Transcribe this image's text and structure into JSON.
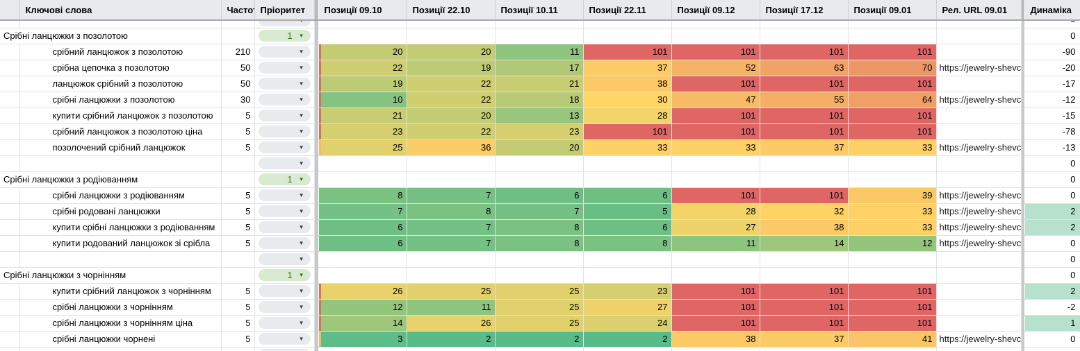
{
  "sheet": {
    "header": {
      "gutter": "",
      "keywords": "Ключові слова",
      "frequency": "Частот",
      "priority": "Пріоритет",
      "positions": [
        "Позиції 09.10",
        "Позиції 22.10",
        "Позиції 10.11",
        "Позиції 22.11",
        "Позиції 09.12",
        "Позиції 17.12",
        "Позиції 09.01"
      ],
      "url": "Рел. URL 09.01",
      "dynamics": "Динаміка"
    },
    "url_text": "https://jewelry-shevcl",
    "colors": {
      "header_bg": "#E9EAED",
      "divider_bg": "#C7CACC",
      "red_101": "#E06666",
      "dyn_positive_bg": "#B7E1CD",
      "pill_green_bg": "#D9EAD3",
      "pill_green_text": "#38761D",
      "pill_gray_bg": "#E8EAED",
      "strip_red": "#DC6E65",
      "strip_orange": "#F7B861"
    },
    "position_color_scale": {
      "2": "#57BB8A",
      "3": "#5DBC89",
      "5": "#69BE86",
      "6": "#6FBF85",
      "7": "#75C084",
      "8": "#7BC182",
      "10": "#87C380",
      "11": "#8DC47E",
      "12": "#93C57D",
      "13": "#99C67C",
      "14": "#9FC77B",
      "17": "#B1C977",
      "18": "#B7CA75",
      "19": "#BDCB74",
      "20": "#C3CC73",
      "21": "#C9CD72",
      "22": "#CFCE70",
      "23": "#D5CF6F",
      "24": "#DBD06E",
      "25": "#E1D16C",
      "26": "#E7D26B",
      "27": "#EDD36A",
      "28": "#F3D468",
      "30": "#FFD666",
      "32": "#FED366",
      "33": "#FED166",
      "36": "#FCCC66",
      "37": "#FCCB66",
      "38": "#FBC966",
      "39": "#FBC866",
      "41": "#FAC566",
      "47": "#F8BB66",
      "52": "#F5B366",
      "55": "#F4AF66",
      "63": "#F1A266",
      "64": "#F0A066",
      "70": "#EE9766",
      "101": "#E06666"
    },
    "rows": [
      {
        "type": "partial_top",
        "dyn": "0"
      },
      {
        "type": "group",
        "label": "Срібні ланцюжки з позолотою",
        "priority": "1",
        "dyn": "0"
      },
      {
        "type": "kw",
        "label": "срібний ланцюжок з позолотою",
        "freq": "210",
        "strip": "red",
        "positions": [
          20,
          20,
          11,
          101,
          101,
          101,
          101
        ],
        "has_url": false,
        "dyn": "-90",
        "dyn_green": false
      },
      {
        "type": "kw",
        "label": "срібна цепочка з позолотою",
        "freq": "50",
        "strip": "red",
        "positions": [
          22,
          19,
          17,
          37,
          52,
          63,
          70
        ],
        "has_url": true,
        "dyn": "-20",
        "dyn_green": false
      },
      {
        "type": "kw",
        "label": "ланцюжок срібний з позолотою",
        "freq": "50",
        "strip": "red",
        "positions": [
          19,
          22,
          21,
          38,
          101,
          101,
          101
        ],
        "has_url": false,
        "dyn": "-17",
        "dyn_green": false
      },
      {
        "type": "kw",
        "label": "срібні ланцюжки з позолотою",
        "freq": "30",
        "strip": "red",
        "positions": [
          10,
          22,
          18,
          30,
          47,
          55,
          64
        ],
        "has_url": true,
        "dyn": "-12",
        "dyn_green": false
      },
      {
        "type": "kw",
        "label": "купити срібний ланцюжок з позолотою",
        "freq": "5",
        "strip": "red",
        "positions": [
          21,
          20,
          13,
          28,
          101,
          101,
          101
        ],
        "has_url": false,
        "dyn": "-15",
        "dyn_green": false
      },
      {
        "type": "kw",
        "label": "срібний ланцюжок з позолотою ціна",
        "freq": "5",
        "strip": "red",
        "positions": [
          23,
          22,
          23,
          101,
          101,
          101,
          101
        ],
        "has_url": false,
        "dyn": "-78",
        "dyn_green": false
      },
      {
        "type": "kw",
        "label": "позолочений срібний ланцюжок",
        "freq": "5",
        "strip": "orange",
        "positions": [
          25,
          36,
          20,
          33,
          33,
          37,
          33
        ],
        "has_url": true,
        "dyn": "-13",
        "dyn_green": false
      },
      {
        "type": "empty",
        "dyn": "0"
      },
      {
        "type": "group",
        "label": "Срібні ланцюжки з родіюванням",
        "priority": "1",
        "dyn": "0"
      },
      {
        "type": "kw",
        "label": "срібні ланцюжки з родіюванням",
        "freq": "5",
        "strip": null,
        "positions": [
          8,
          7,
          6,
          6,
          101,
          101,
          39
        ],
        "has_url": true,
        "dyn": "0",
        "dyn_green": false
      },
      {
        "type": "kw",
        "label": "срібні родовані ланцюжки",
        "freq": "5",
        "strip": null,
        "positions": [
          7,
          8,
          7,
          5,
          28,
          32,
          33
        ],
        "has_url": true,
        "dyn": "2",
        "dyn_green": true
      },
      {
        "type": "kw",
        "label": "купити срібні ланцюжки з родіюванням",
        "freq": "5",
        "strip": null,
        "positions": [
          6,
          7,
          8,
          6,
          27,
          38,
          33
        ],
        "has_url": true,
        "dyn": "2",
        "dyn_green": true
      },
      {
        "type": "kw",
        "label": "купити родований ланцюжок зі срібла",
        "freq": "5",
        "strip": null,
        "positions": [
          6,
          7,
          8,
          8,
          11,
          14,
          12
        ],
        "has_url": true,
        "dyn": "0",
        "dyn_green": false
      },
      {
        "type": "empty",
        "dyn": "0"
      },
      {
        "type": "group",
        "label": "Срібні ланцюжки з чорнінням",
        "priority": "1",
        "dyn": "0"
      },
      {
        "type": "kw",
        "label": "купити срібний ланцюжок з чорнінням",
        "freq": "5",
        "strip": "red",
        "positions": [
          26,
          25,
          25,
          23,
          101,
          101,
          101
        ],
        "has_url": false,
        "dyn": "2",
        "dyn_green": true
      },
      {
        "type": "kw",
        "label": "срібні ланцюжки з чорнінням",
        "freq": "5",
        "strip": "red",
        "positions": [
          12,
          11,
          25,
          27,
          101,
          101,
          101
        ],
        "has_url": false,
        "dyn": "-2",
        "dyn_green": false
      },
      {
        "type": "kw",
        "label": "срібні ланцюжки з чорнінням ціна",
        "freq": "5",
        "strip": "red",
        "positions": [
          14,
          26,
          25,
          24,
          101,
          101,
          101
        ],
        "has_url": false,
        "dyn": "1",
        "dyn_green": true
      },
      {
        "type": "kw",
        "label": "срібні ланцюжки чорнені",
        "freq": "5",
        "strip": "orange",
        "positions": [
          3,
          2,
          2,
          2,
          38,
          37,
          41
        ],
        "has_url": true,
        "dyn": "0",
        "dyn_green": false
      },
      {
        "type": "partial_bottom"
      }
    ]
  }
}
